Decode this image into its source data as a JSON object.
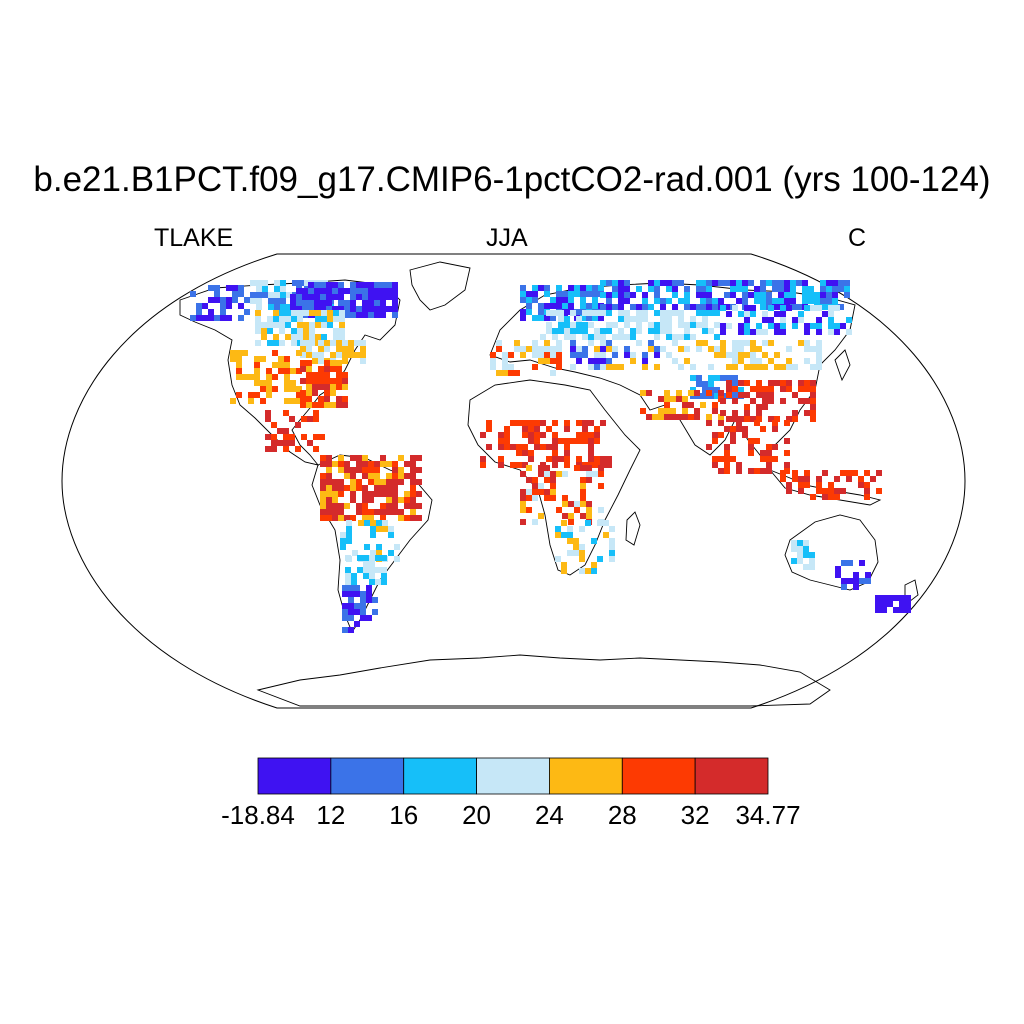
{
  "title": "b.e21.B1PCT.f09_g17.CMIP6-1pctCO2-rad.001 (yrs 100-124)",
  "subtitle_left": "TLAKE",
  "subtitle_center": "JJA",
  "subtitle_right": "C",
  "legend": {
    "colors": [
      "#3f12f2",
      "#3b73e8",
      "#16bff9",
      "#c6e7f7",
      "#fdb914",
      "#fd3a02",
      "#d42b2b"
    ],
    "labels": [
      "-18.84",
      "12",
      "16",
      "20",
      "24",
      "28",
      "32",
      "34.77"
    ]
  }
}
